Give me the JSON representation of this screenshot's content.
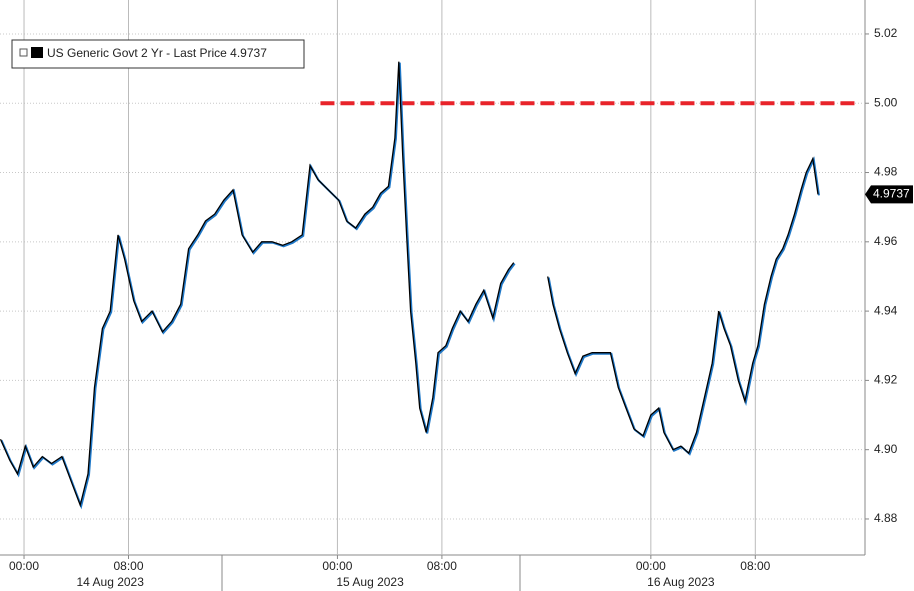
{
  "chart_data": {
    "type": "line",
    "series": [
      {
        "name": "US Generic Govt 2 Yr - Last Price 4.9737",
        "color": "#000000",
        "shadow_color": "#1f78c8",
        "x": [
          -1.8,
          -1.1,
          -0.5,
          0.1,
          0.7,
          1.4,
          2.1,
          2.9,
          3.7,
          4.3,
          4.9,
          5.4,
          6.0,
          6.6,
          7.2,
          7.7,
          8.4,
          9.0,
          9.8,
          10.6,
          11.3,
          12.0,
          12.6,
          13.3,
          13.9,
          14.6,
          15.3,
          16.0,
          16.7,
          17.5,
          18.2,
          19.0,
          19.8,
          20.5,
          21.3,
          21.9,
          22.5,
          23.3,
          24.1,
          24.7,
          25.4,
          26.1,
          26.7,
          27.3,
          27.9,
          28.4,
          28.7,
          29.0,
          29.3,
          29.6,
          30.0,
          30.3,
          30.8,
          31.3,
          31.7,
          32.3,
          32.8,
          33.4,
          34.0,
          34.6,
          35.2,
          35.9,
          36.5,
          37.1,
          37.5,
          38.5,
          40.1,
          40.5,
          41.0,
          41.6,
          42.2,
          42.8,
          43.5,
          44.2,
          44.9,
          45.5,
          46.1,
          46.7,
          47.4,
          48.0,
          48.6,
          49.0,
          49.7,
          50.3,
          50.9,
          51.5,
          52.1,
          52.7,
          53.2,
          53.6,
          54.1,
          54.7,
          55.2,
          55.8,
          56.2,
          56.7,
          57.2,
          57.6,
          58.1,
          58.5,
          59.0,
          59.5,
          59.9,
          60.4,
          60.8
        ],
        "values": [
          4.903,
          4.897,
          4.893,
          4.901,
          4.895,
          4.898,
          4.896,
          4.898,
          4.89,
          4.884,
          4.893,
          4.918,
          4.935,
          4.94,
          4.962,
          4.955,
          4.943,
          4.937,
          4.94,
          4.934,
          4.937,
          4.942,
          4.958,
          4.962,
          4.966,
          4.968,
          4.972,
          4.975,
          4.962,
          4.957,
          4.96,
          4.96,
          4.959,
          4.96,
          4.962,
          4.982,
          4.978,
          4.975,
          4.972,
          4.966,
          4.964,
          4.968,
          4.97,
          4.974,
          4.976,
          4.99,
          5.012,
          4.985,
          4.962,
          4.94,
          4.925,
          4.912,
          4.905,
          4.915,
          4.928,
          4.93,
          4.935,
          4.94,
          4.937,
          4.942,
          4.946,
          4.938,
          4.948,
          4.952,
          4.954,
          null,
          4.95,
          4.942,
          4.935,
          4.928,
          4.922,
          4.927,
          4.928,
          4.928,
          4.928,
          4.918,
          4.912,
          4.906,
          4.904,
          4.91,
          4.912,
          4.905,
          4.9,
          4.901,
          4.899,
          4.905,
          4.915,
          4.925,
          4.94,
          4.935,
          4.93,
          4.92,
          4.914,
          4.925,
          4.93,
          4.942,
          4.95,
          4.955,
          4.958,
          4.962,
          4.968,
          4.975,
          4.98,
          4.984,
          4.9737
        ]
      }
    ],
    "reference_line": {
      "value": 5.0,
      "x_start": 22.7,
      "color": "#e8232a"
    },
    "xlim": [
      -1.84,
      64.4
    ],
    "xticks": [
      {
        "value": 0,
        "label": "00:00"
      },
      {
        "value": 8,
        "label": "08:00"
      },
      {
        "value": 24,
        "label": "00:00"
      },
      {
        "value": 32,
        "label": "08:00"
      },
      {
        "value": 48,
        "label": "00:00"
      },
      {
        "value": 56,
        "label": "08:00"
      }
    ],
    "date_labels": [
      {
        "value": 6.6,
        "label": "14 Aug 2023"
      },
      {
        "value": 26.5,
        "label": "15 Aug 2023"
      },
      {
        "value": 50.3,
        "label": "16 Aug 2023"
      }
    ],
    "ylim": [
      4.8696,
      5.0298
    ],
    "yticks": [
      {
        "value": 4.88,
        "label": "4.88"
      },
      {
        "value": 4.9,
        "label": "4.90"
      },
      {
        "value": 4.92,
        "label": "4.92"
      },
      {
        "value": 4.94,
        "label": "4.94"
      },
      {
        "value": 4.96,
        "label": "4.96"
      },
      {
        "value": 4.98,
        "label": "4.98"
      },
      {
        "value": 5.0,
        "label": "5.00"
      },
      {
        "value": 5.02,
        "label": "5.02"
      }
    ],
    "grid": true
  }
}
